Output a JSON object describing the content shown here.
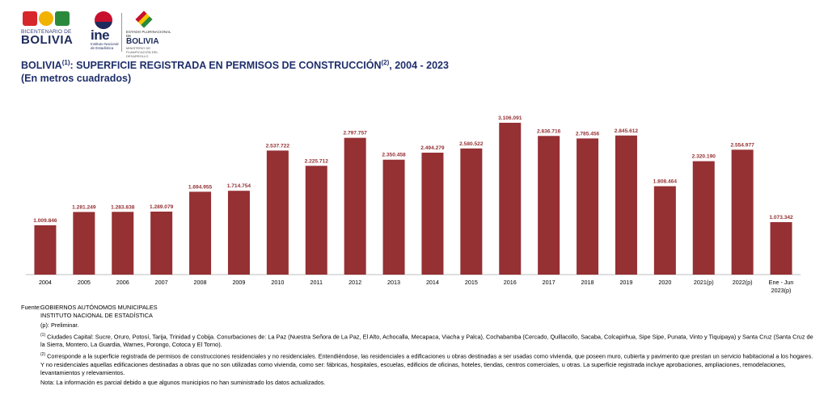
{
  "logos": {
    "bicentenario_line1": "BICENTENARIO DE",
    "bicentenario_line2": "BOLIVIA",
    "ine": "ine",
    "ine_sub": "Instituto Nacional de Estadística",
    "gob_small": "ESTADO PLURINACIONAL DE",
    "gob_name": "BOLIVIA",
    "gob_sub": "MINISTERIO DE PLANIFICACIÓN DEL DESARROLLO"
  },
  "header": {
    "title_part1": "BOLIVIA",
    "title_sup1": "(1)",
    "title_part2": ": SUPERFICIE REGISTRADA EN PERMISOS DE CONSTRUCCIÓN",
    "title_sup2": "(2)",
    "title_part3": ", 2004 - 2023",
    "subtitle": "(En metros cuadrados)"
  },
  "chart_data": {
    "type": "bar",
    "categories": [
      "2004",
      "2005",
      "2006",
      "2007",
      "2008",
      "2009",
      "2010",
      "2011",
      "2012",
      "2013",
      "2014",
      "2015",
      "2016",
      "2017",
      "2018",
      "2019",
      "2020",
      "2021(p)",
      "2022(p)",
      "Ene - Jun 2023(p)"
    ],
    "values": [
      1009846,
      1281249,
      1283838,
      1289079,
      1694955,
      1714754,
      2537722,
      2225712,
      2797757,
      2350458,
      2494279,
      2580522,
      3106091,
      2836716,
      2785456,
      2845612,
      1808464,
      2320190,
      2554977,
      1073342
    ],
    "data_labels": [
      "1.009.846",
      "1.281.249",
      "1.283.838",
      "1.289.079",
      "1.694.955",
      "1.714.754",
      "2.537.722",
      "2.225.712",
      "2.797.757",
      "2.350.458",
      "2.494.279",
      "2.580.522",
      "3.106.091",
      "2.836.716",
      "2.785.456",
      "2.845.612",
      "1.808.464",
      "2.320.190",
      "2.554.977",
      "1.073.342"
    ],
    "bar_color": "#953033",
    "label_color": "#953033",
    "ylim": [
      0,
      3106091
    ],
    "grid": false,
    "legend": "none"
  },
  "footer": {
    "fuente_label": "Fuente:",
    "fuente_1": "GOBIERNOS AUTÓNOMOS MUNICIPALES",
    "fuente_2": "INSTITUTO NACIONAL DE ESTADÍSTICA",
    "prelim": "(p): Preliminar.",
    "note1_sup": "(1)",
    "note1": "Ciudades Capital: Sucre, Oruro, Potosí, Tarija, Trinidad y Cobija. Conurbaciones de: La Paz (Nuestra Señora de La Paz, El Alto, Achocalla, Mecapaca, Viacha y Palca), Cochabamba (Cercado, Quillacollo, Sacaba, Colcapirhua, Sipe Sipe, Punata, Vinto y Tiquipaya) y Santa Cruz (Santa Cruz de la Sierra, Montero, La Guardia, Warnes, Porongo, Cotoca y El Torno).",
    "note2_sup": "(2)",
    "note2": "Corresponde a la superficie registrada de permisos de construcciones residenciales y no residenciales. Entendiéndose, las residenciales a edificaciones u obras destinadas a ser usadas como vivienda, que poseen muro, cubierta y pavimento que prestan un servicio habitacional a los hogares. Y no residenciales aquellas edificaciones destinadas a obras que no son utilizadas como vivienda, como ser: fábricas, hospitales, escuelas, edificios de oficinas, hoteles, tiendas, centros comerciales, u otras. La superficie registrada incluye aprobaciones, ampliaciones, remodelaciones, levantamientos y relevamientos.",
    "nota": "Nota: La información es parcial debido a que algunos municipios no han suministrado los datos actualizados."
  }
}
